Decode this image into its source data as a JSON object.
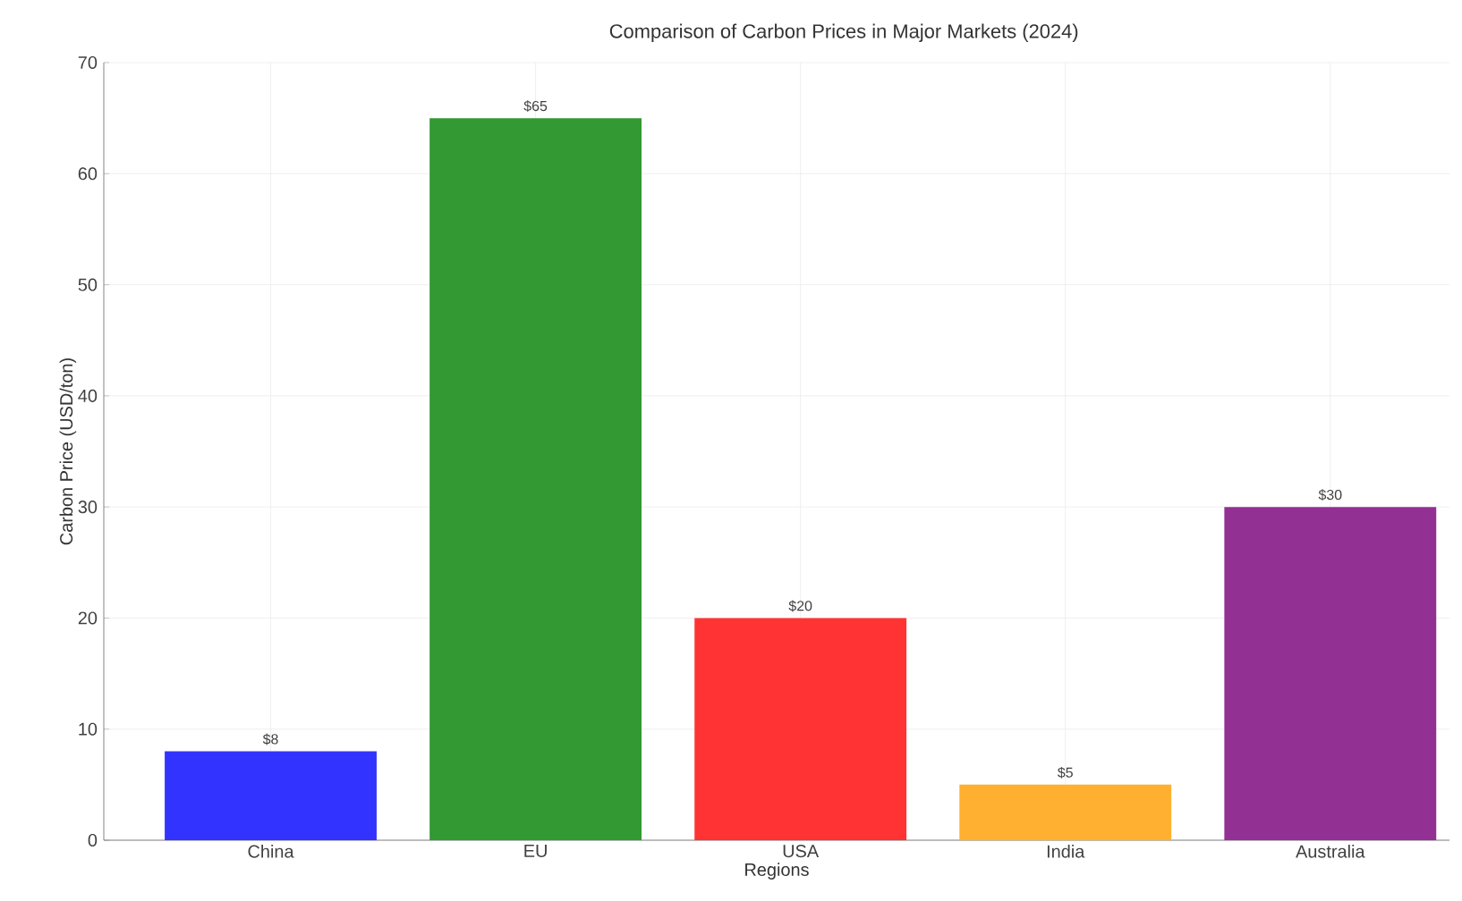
{
  "chart_data": {
    "type": "bar",
    "title": "Comparison of Carbon Prices in Major Markets (2024)",
    "xlabel": "Regions",
    "ylabel": "Carbon Price (USD/ton)",
    "categories": [
      "China",
      "EU",
      "USA",
      "India",
      "Australia"
    ],
    "values": [
      8,
      65,
      20,
      5,
      30
    ],
    "value_labels": [
      "$8",
      "$65",
      "$20",
      "$5",
      "$30"
    ],
    "colors": [
      "#3333ff",
      "#339933",
      "#ff3333",
      "#ffb030",
      "#933093"
    ],
    "ylim": [
      0,
      70
    ],
    "yticks": [
      0,
      10,
      20,
      30,
      40,
      50,
      60,
      70
    ],
    "grid": true
  }
}
